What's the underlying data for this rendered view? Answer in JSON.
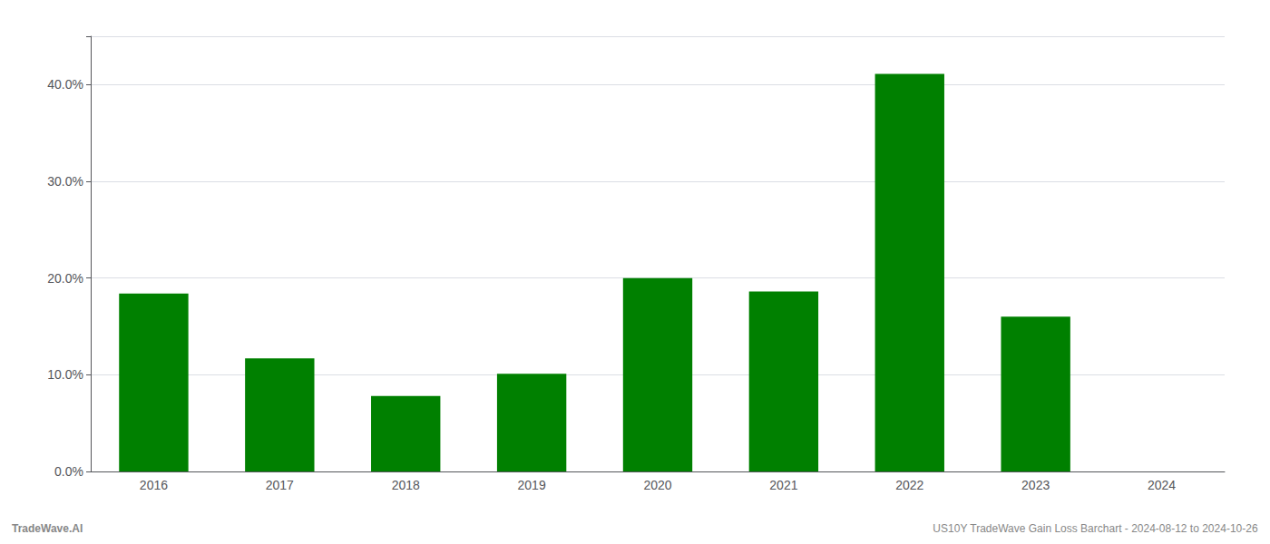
{
  "chart_data": {
    "type": "bar",
    "title": "US10Y TradeWave Gain Loss Barchart - 2024-08-12 to 2024-10-26",
    "annotations": [
      "TradeWave.AI"
    ],
    "categories": [
      "2016",
      "2017",
      "2018",
      "2019",
      "2020",
      "2021",
      "2022",
      "2023",
      "2024"
    ],
    "values": [
      0.184,
      0.117,
      0.078,
      0.101,
      0.2,
      0.186,
      0.411,
      0.16,
      0.0
    ],
    "color": "#008000",
    "ylim": [
      0.0,
      0.45
    ],
    "yticks": [
      {
        "value": 0.0,
        "label": "0.0%"
      },
      {
        "value": 0.1,
        "label": "10.0%"
      },
      {
        "value": 0.2,
        "label": "20.0%"
      },
      {
        "value": 0.3,
        "label": "30.0%"
      },
      {
        "value": 0.4,
        "label": "40.0%"
      }
    ],
    "grid": true
  }
}
